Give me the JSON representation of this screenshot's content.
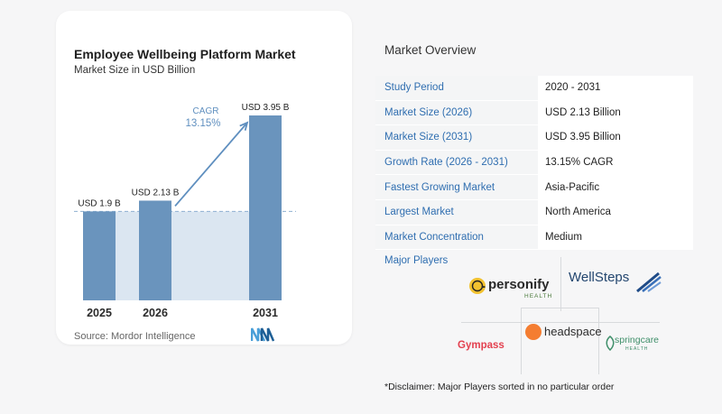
{
  "chart": {
    "title": "Employee Wellbeing Platform Market",
    "subtitle": "Market Size in USD Billion",
    "source": "Source: Mordor Intelligence",
    "cagr_label": "CAGR",
    "cagr_value": "13.15%"
  },
  "chart_data": {
    "type": "bar",
    "categories": [
      "2025",
      "2026",
      "2031"
    ],
    "values": [
      1.9,
      2.13,
      3.95
    ],
    "data_labels": [
      "USD 1.9 B",
      "USD 2.13 B",
      "USD 3.95 B"
    ],
    "title": "Employee Wellbeing Platform Market",
    "subtitle": "Market Size in USD Billion",
    "xlabel": "",
    "ylabel": "",
    "ylim": [
      0,
      3.95
    ],
    "grid": false,
    "colors": {
      "bar": "#6a94bd",
      "band": "#dbe6f1",
      "arrow": "#5f8fbf",
      "cagr": "#5f8fbf"
    }
  },
  "overview": {
    "title": "Market Overview",
    "rows": [
      {
        "label": "Study Period",
        "value": "2020 - 2031"
      },
      {
        "label": "Market Size (2026)",
        "value": "USD 2.13 Billion"
      },
      {
        "label": "Market Size (2031)",
        "value": "USD 3.95 Billion"
      },
      {
        "label": "Growth Rate (2026 - 2031)",
        "value": "13.15% CAGR"
      },
      {
        "label": "Fastest Growing Market",
        "value": "Asia-Pacific"
      },
      {
        "label": "Largest Market",
        "value": "North America"
      },
      {
        "label": "Market Concentration",
        "value": "Medium"
      }
    ]
  },
  "players": {
    "title": "Major Players",
    "personify": {
      "name": "personify",
      "sub": "HEALTH"
    },
    "wellsteps": {
      "name": "WellSteps"
    },
    "gympass": {
      "name": "Gympass"
    },
    "headspace": {
      "name": "headspace"
    },
    "springcare": {
      "name": "springcare",
      "sub": "HEALTH"
    }
  },
  "disclaimer": "*Disclaimer: Major Players sorted in no particular order"
}
